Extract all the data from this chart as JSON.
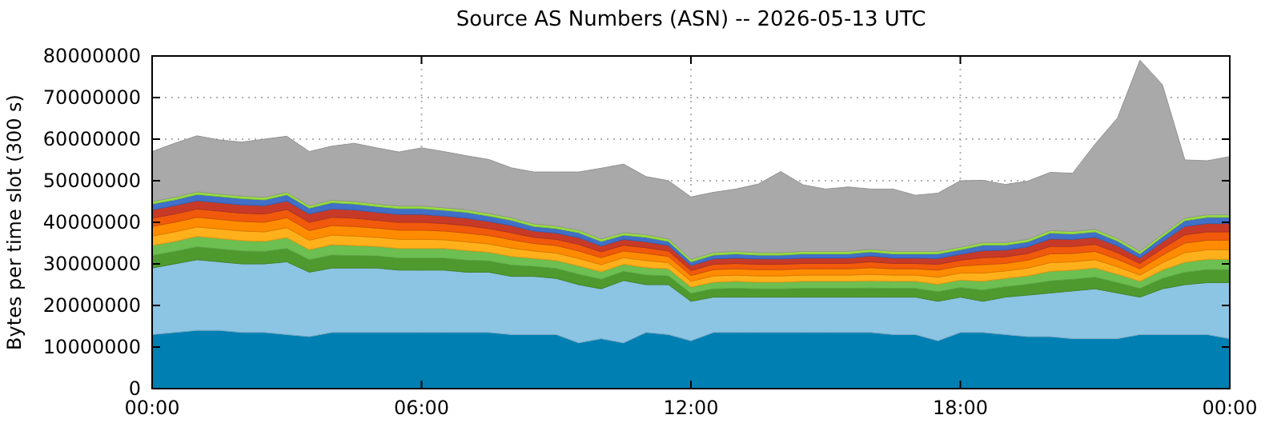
{
  "chart_data": {
    "type": "area",
    "stacked": true,
    "title": "Source AS Numbers (ASN) -- 2026-05-13 UTC",
    "ylabel": "Bytes per time slot (300 s)",
    "grid": true,
    "x": [
      0,
      0.5,
      1,
      1.5,
      2,
      2.5,
      3,
      3.5,
      4,
      4.5,
      5,
      5.5,
      6,
      6.5,
      7,
      7.5,
      8,
      8.5,
      9,
      9.5,
      10,
      10.5,
      11,
      11.5,
      12,
      12.5,
      13,
      13.5,
      14,
      14.5,
      15,
      15.5,
      16,
      16.5,
      17,
      17.5,
      18,
      18.5,
      19,
      19.5,
      20,
      20.5,
      21,
      21.5,
      22,
      22.5,
      23,
      23.5,
      24
    ],
    "xlim": [
      0,
      24
    ],
    "xticks": [
      {
        "value": 0,
        "label": "00:00"
      },
      {
        "value": 6,
        "label": "06:00"
      },
      {
        "value": 12,
        "label": "12:00"
      },
      {
        "value": 18,
        "label": "18:00"
      },
      {
        "value": 24,
        "label": "00:00"
      }
    ],
    "ylim": [
      0,
      80000000
    ],
    "yticks": [
      0,
      10000000,
      20000000,
      30000000,
      40000000,
      50000000,
      60000000,
      70000000,
      80000000
    ],
    "series": [
      {
        "color": "#0080b2",
        "values": [
          13000000.0,
          13500000.0,
          14000000.0,
          14000000.0,
          13500000.0,
          13500000.0,
          13000000.0,
          12500000.0,
          13500000.0,
          13500000.0,
          13500000.0,
          13500000.0,
          13500000.0,
          13500000.0,
          13500000.0,
          13500000.0,
          13000000.0,
          13000000.0,
          13000000.0,
          11000000.0,
          12000000.0,
          11000000.0,
          13500000.0,
          13000000.0,
          11500000.0,
          13500000.0,
          13500000.0,
          13500000.0,
          13500000.0,
          13500000.0,
          13500000.0,
          13500000.0,
          13500000.0,
          13000000.0,
          13000000.0,
          11500000.0,
          13500000.0,
          13500000.0,
          13000000.0,
          12500000.0,
          12500000.0,
          12000000.0,
          12000000.0,
          12000000.0,
          13000000.0,
          13000000.0,
          13000000.0,
          13000000.0,
          12000000.0
        ]
      },
      {
        "color": "#8cc4e4",
        "values": [
          16000000.0,
          16500000.0,
          17000000.0,
          16500000.0,
          16500000.0,
          16500000.0,
          17500000.0,
          15500000.0,
          15500000.0,
          15500000.0,
          15500000.0,
          15000000.0,
          15000000.0,
          15000000.0,
          14500000.0,
          14500000.0,
          14000000.0,
          14000000.0,
          13500000.0,
          14000000.0,
          12000000.0,
          15000000.0,
          11500000.0,
          12000000.0,
          9500000.0,
          8500000.0,
          8500000.0,
          8500000.0,
          8500000.0,
          8500000.0,
          8500000.0,
          8500000.0,
          8500000.0,
          9000000.0,
          9000000.0,
          9500000.0,
          8500000.0,
          7500000.0,
          9000000.0,
          10000000.0,
          10500000.0,
          11500000.0,
          12000000.0,
          11000000.0,
          9000000.0,
          11000000.0,
          12000000.0,
          12500000.0,
          13500000.0
        ]
      },
      {
        "color": "#4e9a2e",
        "values": [
          3000000.0,
          3000000.0,
          3100000.0,
          3100000.0,
          3100000.0,
          3000000.0,
          3200000.0,
          3000000.0,
          3100000.0,
          3000000.0,
          2900000.0,
          2900000.0,
          2900000.0,
          2900000.0,
          2900000.0,
          2700000.0,
          2700000.0,
          2400000.0,
          2400000.0,
          2500000.0,
          2300000.0,
          2200000.0,
          2300000.0,
          2100000.0,
          1900000.0,
          2000000.0,
          2100000.0,
          2000000.0,
          2000000.0,
          2100000.0,
          2100000.0,
          2100000.0,
          2200000.0,
          2100000.0,
          2100000.0,
          2300000.0,
          2300000.0,
          2700000.0,
          2500000.0,
          2600000.0,
          2900000.0,
          2800000.0,
          2800000.0,
          2500000.0,
          2100000.0,
          2500000.0,
          3000000.0,
          3100000.0,
          3100000.0
        ]
      },
      {
        "color": "#6cbf50",
        "values": [
          2400000.0,
          2400000.0,
          2500000.0,
          2500000.0,
          2500000.0,
          2400000.0,
          2600000.0,
          2400000.0,
          2500000.0,
          2400000.0,
          2300000.0,
          2300000.0,
          2300000.0,
          2300000.0,
          2300000.0,
          2100000.0,
          2100000.0,
          1900000.0,
          1900000.0,
          2000000.0,
          1800000.0,
          1700000.0,
          1800000.0,
          1700000.0,
          1500000.0,
          1600000.0,
          1700000.0,
          1600000.0,
          1600000.0,
          1700000.0,
          1700000.0,
          1700000.0,
          1700000.0,
          1700000.0,
          1700000.0,
          1800000.0,
          1800000.0,
          2100000.0,
          2000000.0,
          2000000.0,
          2300000.0,
          2200000.0,
          2200000.0,
          2000000.0,
          1700000.0,
          2000000.0,
          2400000.0,
          2500000.0,
          2500000.0
        ]
      },
      {
        "color": "#ffb01a",
        "values": [
          2300000.0,
          2300000.0,
          2300000.0,
          2300000.0,
          2300000.0,
          2300000.0,
          2400000.0,
          2300000.0,
          2300000.0,
          2300000.0,
          2200000.0,
          2200000.0,
          2200000.0,
          2100000.0,
          2100000.0,
          2000000.0,
          2000000.0,
          1800000.0,
          1800000.0,
          1800000.0,
          1700000.0,
          1600000.0,
          1700000.0,
          1500000.0,
          1400000.0,
          1500000.0,
          1500000.0,
          1500000.0,
          1500000.0,
          1500000.0,
          1500000.0,
          1500000.0,
          1600000.0,
          1500000.0,
          1500000.0,
          1700000.0,
          1700000.0,
          2000000.0,
          1800000.0,
          1900000.0,
          2100000.0,
          2000000.0,
          2000000.0,
          1800000.0,
          1500000.0,
          1800000.0,
          2300000.0,
          2300000.0,
          2300000.0
        ]
      },
      {
        "color": "#ff8c00",
        "values": [
          2300000.0,
          2300000.0,
          2300000.0,
          2300000.0,
          2300000.0,
          2300000.0,
          2400000.0,
          2300000.0,
          2300000.0,
          2300000.0,
          2200000.0,
          2200000.0,
          2200000.0,
          2100000.0,
          2100000.0,
          2000000.0,
          2000000.0,
          1800000.0,
          1800000.0,
          1800000.0,
          1700000.0,
          1600000.0,
          1700000.0,
          1500000.0,
          1400000.0,
          1500000.0,
          1500000.0,
          1500000.0,
          1500000.0,
          1500000.0,
          1500000.0,
          1500000.0,
          1600000.0,
          1500000.0,
          1500000.0,
          1700000.0,
          1700000.0,
          2000000.0,
          1800000.0,
          1900000.0,
          2100000.0,
          2000000.0,
          2000000.0,
          1800000.0,
          1500000.0,
          1800000.0,
          2300000.0,
          2300000.0,
          2300000.0
        ]
      },
      {
        "color": "#f05a0a",
        "values": [
          2000000.0,
          2000000.0,
          2000000.0,
          2000000.0,
          2000000.0,
          2000000.0,
          2000000.0,
          2000000.0,
          2000000.0,
          2000000.0,
          1900000.0,
          1900000.0,
          1900000.0,
          1800000.0,
          1800000.0,
          1700000.0,
          1700000.0,
          1500000.0,
          1500000.0,
          1600000.0,
          1400000.0,
          1400000.0,
          1400000.0,
          1300000.0,
          1200000.0,
          1300000.0,
          1300000.0,
          1300000.0,
          1300000.0,
          1300000.0,
          1300000.0,
          1300000.0,
          1400000.0,
          1300000.0,
          1300000.0,
          1400000.0,
          1400000.0,
          1700000.0,
          1600000.0,
          1600000.0,
          1800000.0,
          1700000.0,
          1700000.0,
          1600000.0,
          1300000.0,
          1600000.0,
          2000000.0,
          2000000.0,
          2000000.0
        ]
      },
      {
        "color": "#c83a28",
        "values": [
          2000000.0,
          2000000.0,
          2000000.0,
          2000000.0,
          2000000.0,
          2000000.0,
          2000000.0,
          2000000.0,
          2000000.0,
          2000000.0,
          1900000.0,
          1900000.0,
          1900000.0,
          1800000.0,
          1800000.0,
          1700000.0,
          1700000.0,
          1500000.0,
          1500000.0,
          1600000.0,
          1400000.0,
          1400000.0,
          1400000.0,
          1300000.0,
          1200000.0,
          1300000.0,
          1300000.0,
          1300000.0,
          1300000.0,
          1300000.0,
          1300000.0,
          1300000.0,
          1400000.0,
          1300000.0,
          1300000.0,
          1400000.0,
          1400000.0,
          1700000.0,
          1600000.0,
          1600000.0,
          1800000.0,
          1700000.0,
          1700000.0,
          1600000.0,
          1300000.0,
          1600000.0,
          2000000.0,
          2000000.0,
          2000000.0
        ]
      },
      {
        "color": "#4070c8",
        "values": [
          1400000.0,
          1400000.0,
          1500000.0,
          1500000.0,
          1500000.0,
          1400000.0,
          1500000.0,
          1400000.0,
          1500000.0,
          1400000.0,
          1400000.0,
          1400000.0,
          1400000.0,
          1400000.0,
          1400000.0,
          1300000.0,
          1300000.0,
          1100000.0,
          1100000.0,
          1200000.0,
          1100000.0,
          1000000.0,
          1100000.0,
          1000000.0,
          900000.0,
          900000.0,
          1000000.0,
          900000.0,
          900000.0,
          1000000.0,
          1000000.0,
          1000000.0,
          1000000.0,
          1000000.0,
          1000000.0,
          1100000.0,
          1100000.0,
          1300000.0,
          1200000.0,
          1200000.0,
          1400000.0,
          1300000.0,
          1300000.0,
          1200000.0,
          1000000.0,
          1200000.0,
          1400000.0,
          1500000.0,
          1500000.0
        ]
      },
      {
        "color": "#99e040",
        "values": [
          600000.0,
          600000.0,
          600000.0,
          600000.0,
          600000.0,
          600000.0,
          600000.0,
          600000.0,
          600000.0,
          600000.0,
          600000.0,
          600000.0,
          600000.0,
          600000.0,
          600000.0,
          600000.0,
          600000.0,
          600000.0,
          600000.0,
          600000.0,
          600000.0,
          600000.0,
          600000.0,
          600000.0,
          600000.0,
          600000.0,
          600000.0,
          600000.0,
          600000.0,
          600000.0,
          600000.0,
          600000.0,
          600000.0,
          600000.0,
          600000.0,
          600000.0,
          600000.0,
          600000.0,
          600000.0,
          600000.0,
          600000.0,
          600000.0,
          600000.0,
          600000.0,
          600000.0,
          600000.0,
          600000.0,
          600000.0,
          600000.0
        ]
      },
      {
        "color": "#a9a9a9",
        "values": [
          12000000.0,
          13000000.0,
          13500000.0,
          13000000.0,
          13000000.0,
          14000000.0,
          13500000.0,
          13000000.0,
          13000000.0,
          14000000.0,
          13500000.0,
          13000000.0,
          14000000.0,
          13500000.0,
          13000000.0,
          13000000.0,
          12000000.0,
          12500000.0,
          13000000.0,
          14000000.0,
          17000000.0,
          16500000.0,
          14000000.0,
          14000000.0,
          15000000.0,
          14500000.0,
          15000000.0,
          16500000.0,
          19500000.0,
          16000000.0,
          15000000.0,
          15500000.0,
          14500000.0,
          15000000.0,
          13500000.0,
          14000000.0,
          16000000.0,
          15000000.0,
          14000000.0,
          14000000.0,
          14000000.0,
          14000000.0,
          20500000.0,
          29000000.0,
          46000000.0,
          36000000.0,
          14000000.0,
          13000000.0,
          14000000.0
        ]
      }
    ]
  }
}
